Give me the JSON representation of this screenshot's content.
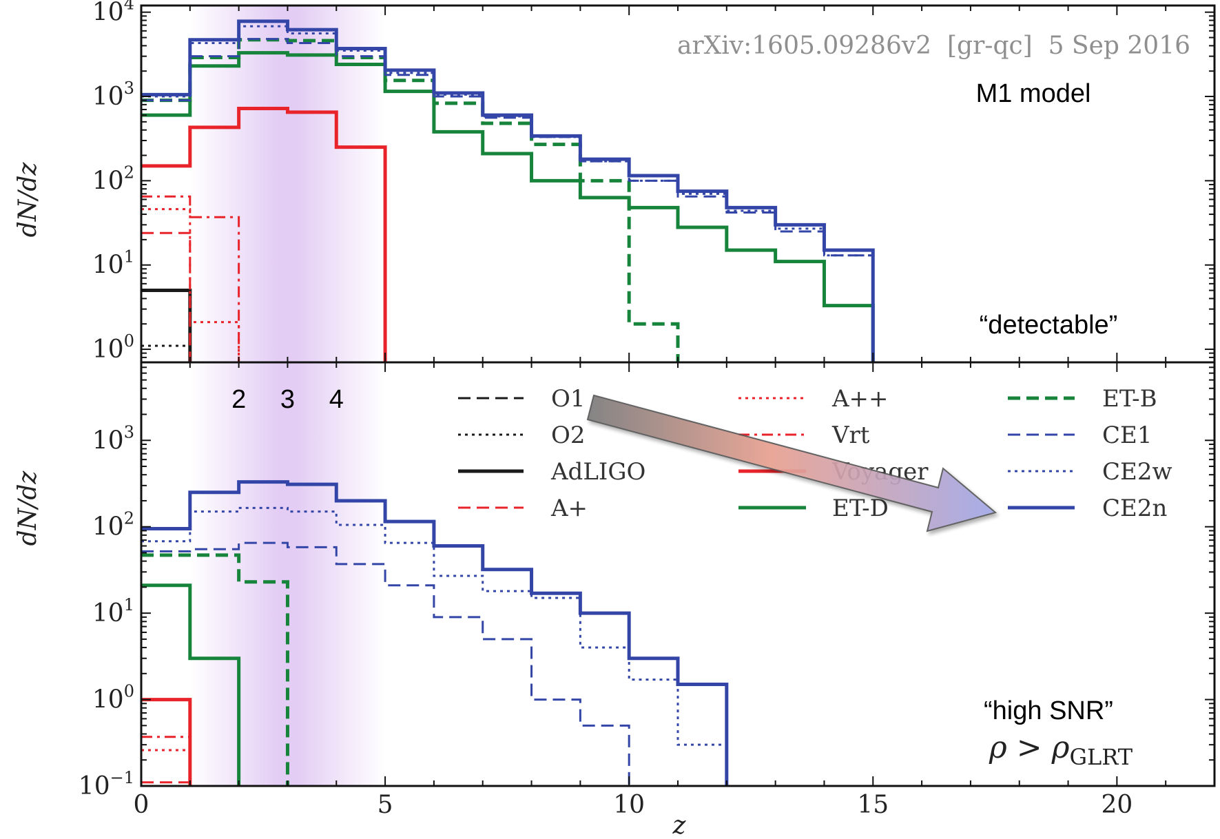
{
  "watermark": "arXiv:1605.09286v2  [gr-qc]  5 Sep 2016",
  "annotations": {
    "top_model": "M1 model",
    "top_category": "“detectable”",
    "bottom_category": "“high SNR”",
    "rho_lhs": "ρ > ρ",
    "rho_sub": "GLRT",
    "redshift_marks": [
      "2",
      "3",
      "4"
    ]
  },
  "x_axis": {
    "label": "z",
    "ticks": [
      "0",
      "5",
      "10",
      "15",
      "20"
    ]
  },
  "colors": {
    "black": "#1a1a1a",
    "red": "#e8232a",
    "green": "#17843b",
    "blue": "#3346a8",
    "purple_band": "#b070e0",
    "arrow_start": "#7a7a7a",
    "arrow_mid": "#e8a090",
    "arrow_end": "#a0a8e8"
  },
  "legend": [
    {
      "label": "O1",
      "color": "#1a1a1a",
      "style": "dashed"
    },
    {
      "label": "O2",
      "color": "#1a1a1a",
      "style": "dotted"
    },
    {
      "label": "AdLIGO",
      "color": "#1a1a1a",
      "style": "solid"
    },
    {
      "label": "A+",
      "color": "#e8232a",
      "style": "dashed"
    },
    {
      "label": "A++",
      "color": "#e8232a",
      "style": "dotted"
    },
    {
      "label": "Vrt",
      "color": "#e8232a",
      "style": "dashdot"
    },
    {
      "label": "Voyager",
      "color": "#e8232a",
      "style": "solid"
    },
    {
      "label": "ET-D",
      "color": "#17843b",
      "style": "solid"
    },
    {
      "label": "ET-B",
      "color": "#17843b",
      "style": "dashed"
    },
    {
      "label": "CE1",
      "color": "#3346a8",
      "style": "dashed"
    },
    {
      "label": "CE2w",
      "color": "#3346a8",
      "style": "dotted"
    },
    {
      "label": "CE2n",
      "color": "#3346a8",
      "style": "solid"
    }
  ],
  "chart_data": [
    {
      "type": "line",
      "panel": "top",
      "step": "histogram",
      "xlabel": "",
      "ylabel": "dN/dz",
      "xlim": [
        0,
        22
      ],
      "ylim": [
        0.7,
        12000
      ],
      "yscale": "log",
      "y_ticks": [
        {
          "value": 1,
          "base": "10",
          "exp": "0"
        },
        {
          "value": 10,
          "base": "10",
          "exp": "1"
        },
        {
          "value": 100,
          "base": "10",
          "exp": "2"
        },
        {
          "value": 1000,
          "base": "10",
          "exp": "3"
        },
        {
          "value": 10000,
          "base": "10",
          "exp": "4"
        }
      ],
      "series": [
        {
          "name": "O2",
          "edges": [
            0,
            1
          ],
          "values": [
            1.1
          ]
        },
        {
          "name": "AdLIGO",
          "edges": [
            0,
            1
          ],
          "values": [
            5
          ]
        },
        {
          "name": "A+",
          "edges": [
            0,
            1
          ],
          "values": [
            24
          ]
        },
        {
          "name": "A++",
          "edges": [
            0,
            1,
            2,
            3
          ],
          "values": [
            46,
            2.1,
            0.4
          ]
        },
        {
          "name": "Vrt",
          "edges": [
            0,
            1,
            2,
            3
          ],
          "values": [
            65,
            37,
            0.4
          ]
        },
        {
          "name": "Voyager",
          "edges": [
            0,
            1,
            2,
            3,
            4,
            5
          ],
          "values": [
            150,
            430,
            720,
            650,
            250
          ]
        },
        {
          "name": "ET-D",
          "edges": [
            0,
            1,
            2,
            3,
            4,
            5,
            6,
            7,
            8,
            9,
            10,
            11,
            12,
            13,
            14,
            15
          ],
          "values": [
            600,
            2300,
            3300,
            3100,
            2400,
            1150,
            380,
            210,
            100,
            63,
            48,
            28,
            15,
            11,
            3.3
          ]
        },
        {
          "name": "ET-B",
          "edges": [
            0,
            1,
            2,
            3,
            4,
            5,
            6,
            7,
            8,
            9,
            10,
            11
          ],
          "values": [
            900,
            2900,
            4700,
            4600,
            2900,
            1550,
            830,
            480,
            270,
            100,
            2,
            0.4
          ]
        },
        {
          "name": "CE1",
          "edges": [
            0,
            1,
            2,
            3,
            4,
            5,
            6,
            7,
            8,
            9,
            10,
            11,
            12,
            13,
            14,
            15
          ],
          "values": [
            900,
            3000,
            4800,
            4300,
            3000,
            1800,
            1000,
            560,
            330,
            170,
            100,
            65,
            42,
            25,
            13
          ]
        },
        {
          "name": "CE2w",
          "edges": [
            0,
            1,
            2,
            3,
            4,
            5,
            6,
            7,
            8,
            9,
            10,
            11,
            12,
            13,
            14,
            15
          ],
          "values": [
            1000,
            4300,
            6800,
            5600,
            3500,
            1900,
            1050,
            580,
            330,
            170,
            100,
            70,
            44,
            27,
            13
          ]
        },
        {
          "name": "CE2n",
          "edges": [
            0,
            1,
            2,
            3,
            4,
            5,
            6,
            7,
            8,
            9,
            10,
            11,
            12,
            13,
            14,
            15
          ],
          "values": [
            1050,
            4700,
            7800,
            6200,
            3700,
            2050,
            1100,
            600,
            340,
            180,
            115,
            75,
            48,
            30,
            15
          ]
        }
      ]
    },
    {
      "type": "line",
      "panel": "bottom",
      "step": "histogram",
      "xlabel": "z",
      "ylabel": "dN/dz",
      "xlim": [
        0,
        22
      ],
      "ylim": [
        0.1,
        8000
      ],
      "yscale": "log",
      "y_ticks": [
        {
          "value": 0.1,
          "base": "10",
          "exp": "−1"
        },
        {
          "value": 1,
          "base": "10",
          "exp": "0"
        },
        {
          "value": 10,
          "base": "10",
          "exp": "1"
        },
        {
          "value": 100,
          "base": "10",
          "exp": "2"
        },
        {
          "value": 1000,
          "base": "10",
          "exp": "3"
        }
      ],
      "series": [
        {
          "name": "A+",
          "edges": [
            0,
            1
          ],
          "values": [
            0.11
          ]
        },
        {
          "name": "A++",
          "edges": [
            0,
            1
          ],
          "values": [
            0.26
          ]
        },
        {
          "name": "Vrt",
          "edges": [
            0,
            1
          ],
          "values": [
            0.37
          ]
        },
        {
          "name": "Voyager",
          "edges": [
            0,
            1
          ],
          "values": [
            1
          ]
        },
        {
          "name": "ET-D",
          "edges": [
            0,
            1,
            2,
            3
          ],
          "values": [
            21,
            3,
            0.05
          ]
        },
        {
          "name": "ET-B",
          "edges": [
            0,
            1,
            2,
            3,
            4
          ],
          "values": [
            47,
            47,
            23,
            0.05
          ]
        },
        {
          "name": "CE1",
          "edges": [
            0,
            1,
            2,
            3,
            4,
            5,
            6,
            7,
            8,
            9,
            10
          ],
          "values": [
            52,
            55,
            65,
            58,
            37,
            21,
            9,
            5,
            1,
            0.5
          ]
        },
        {
          "name": "CE2w",
          "edges": [
            0,
            1,
            2,
            3,
            4,
            5,
            6,
            7,
            8,
            9,
            10,
            11,
            12,
            13
          ],
          "values": [
            68,
            150,
            165,
            150,
            105,
            65,
            27,
            18,
            15,
            4,
            1.7,
            0.3,
            0.05
          ]
        },
        {
          "name": "CE2n",
          "edges": [
            0,
            1,
            2,
            3,
            4,
            5,
            6,
            7,
            8,
            9,
            10,
            11,
            12,
            13
          ],
          "values": [
            95,
            250,
            330,
            310,
            200,
            115,
            60,
            32,
            17,
            10,
            3,
            1.5,
            0.05
          ]
        }
      ]
    }
  ]
}
